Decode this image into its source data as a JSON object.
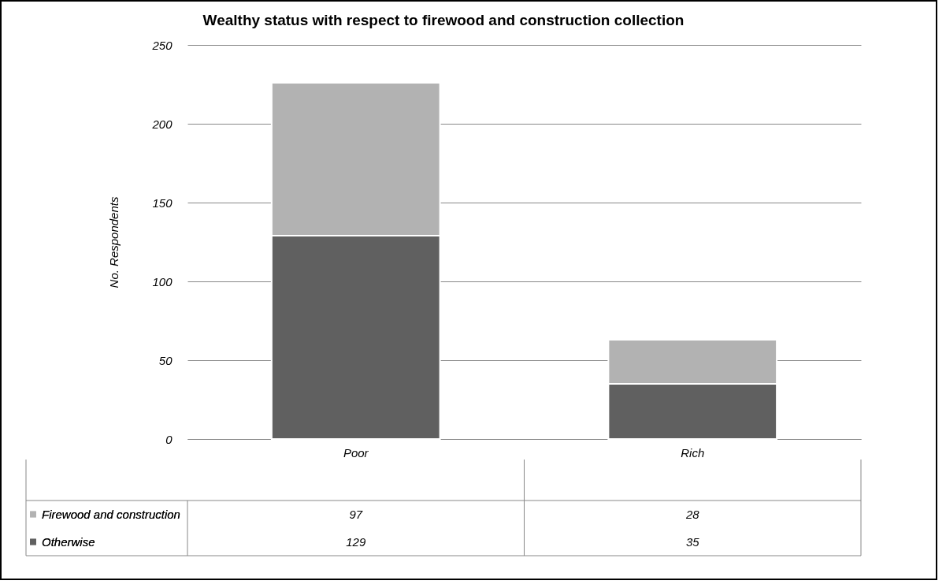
{
  "chart_data": {
    "type": "bar",
    "title": "Wealthy status with respect to firewood and construction collection",
    "ylabel": "No. Respondents",
    "categories": [
      "Poor",
      "Rich"
    ],
    "series": [
      {
        "name": "Otherwise",
        "color": "#606060",
        "values": [
          129,
          35
        ]
      },
      {
        "name": "Firewood and construction",
        "color": "#b2b2b2",
        "values": [
          97,
          28
        ]
      }
    ],
    "stacked": true,
    "ylim": [
      0,
      250
    ],
    "yticks": [
      0,
      50,
      100,
      150,
      200,
      250
    ],
    "grid": "y",
    "legend": "bottom",
    "data_labels": true
  }
}
